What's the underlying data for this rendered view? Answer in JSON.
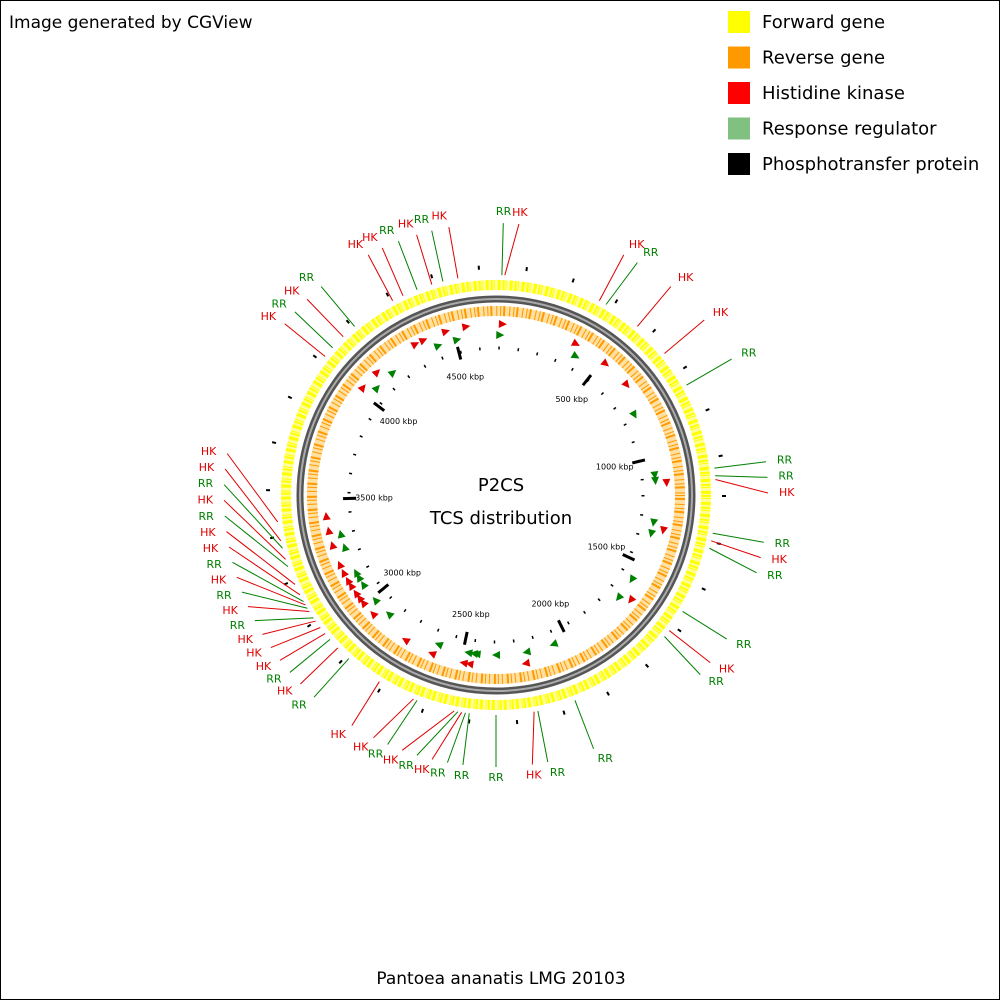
{
  "header": "Image generated by CGView",
  "legend": [
    {
      "label": "Forward gene",
      "color": "#ffff00"
    },
    {
      "label": "Reverse gene",
      "color": "#ff9900"
    },
    {
      "label": "Histidine kinase",
      "color": "#ff0000"
    },
    {
      "label": "Response regulator",
      "color": "#80c080"
    },
    {
      "label": "Phosphotransfer protein",
      "color": "#000000"
    }
  ],
  "center_title": [
    "P2CS",
    "TCS distribution"
  ],
  "footer": "Pantoea ananatis LMG 20103",
  "xlim": [
    0,
    4690
  ],
  "ticks": [
    {
      "value": 500,
      "label": "500 kbp"
    },
    {
      "value": 1000,
      "label": "1000 kbp"
    },
    {
      "value": 1500,
      "label": "1500 kbp"
    },
    {
      "value": 2000,
      "label": "2000 kbp"
    },
    {
      "value": 2500,
      "label": "2500 kbp"
    },
    {
      "value": 3000,
      "label": "3000 kbp"
    },
    {
      "value": 3500,
      "label": "3500 kbp"
    },
    {
      "value": 4000,
      "label": "4000 kbp"
    },
    {
      "value": 4500,
      "label": "4500 kbp"
    }
  ],
  "colors": {
    "HK": "#e00000",
    "RR": "#008000"
  },
  "features": [
    {
      "position": 20,
      "label": "RR"
    },
    {
      "position": 30,
      "label": "HK"
    },
    {
      "position": 365,
      "label": "HK"
    },
    {
      "position": 391,
      "label": "RR"
    },
    {
      "position": 521,
      "label": "HK"
    },
    {
      "position": 651,
      "label": "HK"
    },
    {
      "position": 782,
      "label": "RR"
    },
    {
      "position": 1081,
      "label": "RR"
    },
    {
      "position": 1107,
      "label": "RR"
    },
    {
      "position": 1120,
      "label": "HK"
    },
    {
      "position": 1303,
      "label": "RR"
    },
    {
      "position": 1329,
      "label": "HK"
    },
    {
      "position": 1355,
      "label": "RR"
    },
    {
      "position": 1589,
      "label": "RR"
    },
    {
      "position": 1668,
      "label": "HK"
    },
    {
      "position": 1694,
      "label": "RR"
    },
    {
      "position": 2071,
      "label": "RR"
    },
    {
      "position": 2202,
      "label": "RR"
    },
    {
      "position": 2215,
      "label": "HK"
    },
    {
      "position": 2345,
      "label": "RR"
    },
    {
      "position": 2436,
      "label": "RR"
    },
    {
      "position": 2449,
      "label": "RR"
    },
    {
      "position": 2462,
      "label": "HK"
    },
    {
      "position": 2475,
      "label": "RR"
    },
    {
      "position": 2488,
      "label": "HK"
    },
    {
      "position": 2619,
      "label": "RR"
    },
    {
      "position": 2632,
      "label": "HK"
    },
    {
      "position": 2762,
      "label": "HK"
    },
    {
      "position": 2892,
      "label": "RR"
    },
    {
      "position": 2944,
      "label": "HK"
    },
    {
      "position": 2983,
      "label": "RR"
    },
    {
      "position": 3009,
      "label": "HK"
    },
    {
      "position": 3035,
      "label": "HK"
    },
    {
      "position": 3062,
      "label": "HK"
    },
    {
      "position": 3075,
      "label": "RR"
    },
    {
      "position": 3101,
      "label": "HK"
    },
    {
      "position": 3114,
      "label": "RR"
    },
    {
      "position": 3127,
      "label": "HK"
    },
    {
      "position": 3140,
      "label": "RR"
    },
    {
      "position": 3166,
      "label": "HK"
    },
    {
      "position": 3205,
      "label": "HK"
    },
    {
      "position": 3270,
      "label": "RR"
    },
    {
      "position": 3296,
      "label": "HK"
    },
    {
      "position": 3335,
      "label": "RR"
    },
    {
      "position": 3361,
      "label": "HK"
    },
    {
      "position": 3426,
      "label": "HK"
    },
    {
      "position": 4026,
      "label": "HK"
    },
    {
      "position": 4065,
      "label": "RR"
    },
    {
      "position": 4117,
      "label": "HK"
    },
    {
      "position": 4169,
      "label": "RR"
    },
    {
      "position": 4325,
      "label": "HK"
    },
    {
      "position": 4364,
      "label": "HK"
    },
    {
      "position": 4416,
      "label": "RR"
    },
    {
      "position": 4469,
      "label": "HK"
    },
    {
      "position": 4508,
      "label": "RR"
    },
    {
      "position": 4560,
      "label": "HK"
    }
  ]
}
